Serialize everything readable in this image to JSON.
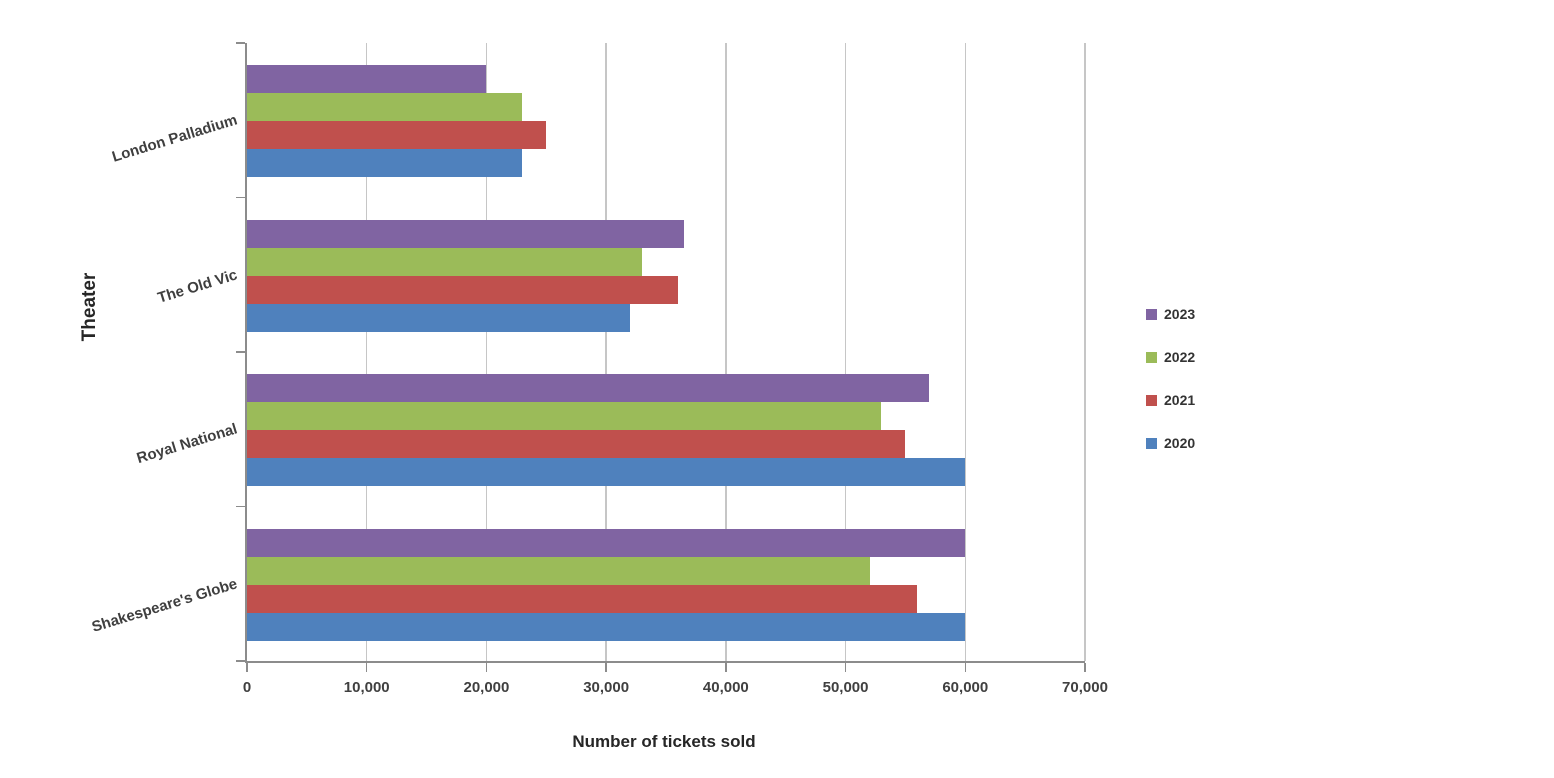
{
  "chart_data": {
    "type": "bar",
    "orientation": "horizontal",
    "title": "",
    "xlabel": "Number of tickets sold",
    "ylabel": "Theater",
    "categories": [
      "London Palladium",
      "The Old Vic",
      "Royal National",
      "Shakespeare's Globe"
    ],
    "series": [
      {
        "name": "2023",
        "color": "#8064A2",
        "values": [
          20000,
          36500,
          57000,
          60000
        ]
      },
      {
        "name": "2022",
        "color": "#9BBB59",
        "values": [
          23000,
          33000,
          53000,
          52000
        ]
      },
      {
        "name": "2021",
        "color": "#C0504D",
        "values": [
          25000,
          36000,
          55000,
          56000
        ]
      },
      {
        "name": "2020",
        "color": "#4F81BD",
        "values": [
          23000,
          32000,
          60000,
          60000
        ]
      }
    ],
    "x_axis": {
      "min": 0,
      "max": 70000,
      "tick_interval": 10000,
      "tick_labels": [
        "0",
        "10,000",
        "20,000",
        "30,000",
        "40,000",
        "50,000",
        "60,000",
        "70,000"
      ]
    },
    "legend": {
      "position": "right",
      "entries": [
        "2023",
        "2022",
        "2021",
        "2020"
      ]
    },
    "grid": true
  },
  "colors": {
    "background": "#FFFFFF",
    "axis_line": "#8C8C8C",
    "gridline": "#C6C6C6",
    "tick_text": "#404040",
    "title_text": "#262626"
  }
}
